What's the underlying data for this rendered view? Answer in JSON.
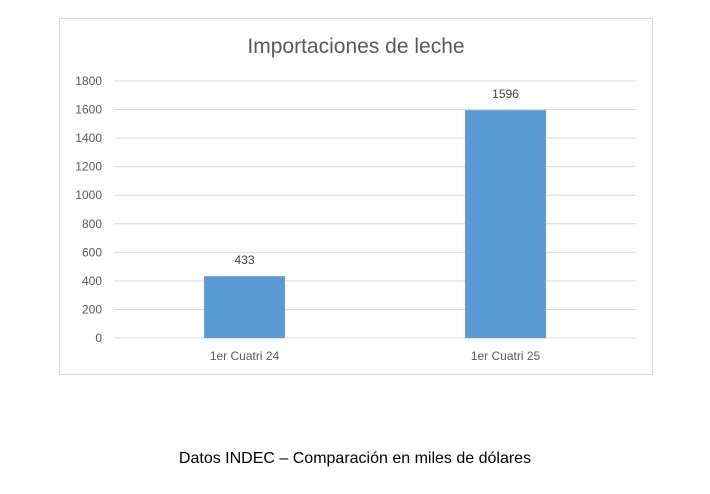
{
  "chart_data": {
    "type": "bar",
    "title": "Importaciones de leche",
    "categories": [
      "1er Cuatri 24",
      "1er Cuatri 25"
    ],
    "values": [
      433,
      1596
    ],
    "data_labels": [
      "433",
      "1596"
    ],
    "ylim": [
      0,
      1800
    ],
    "yticks": [
      0,
      200,
      400,
      600,
      800,
      1000,
      1200,
      1400,
      1600,
      1800
    ],
    "grid": true,
    "legend": "none",
    "bar_color": "#5b9bd5",
    "grid_color": "#d9d9d9",
    "text_color": "#595959"
  },
  "caption": "Datos INDEC – Comparación en miles de dólares"
}
